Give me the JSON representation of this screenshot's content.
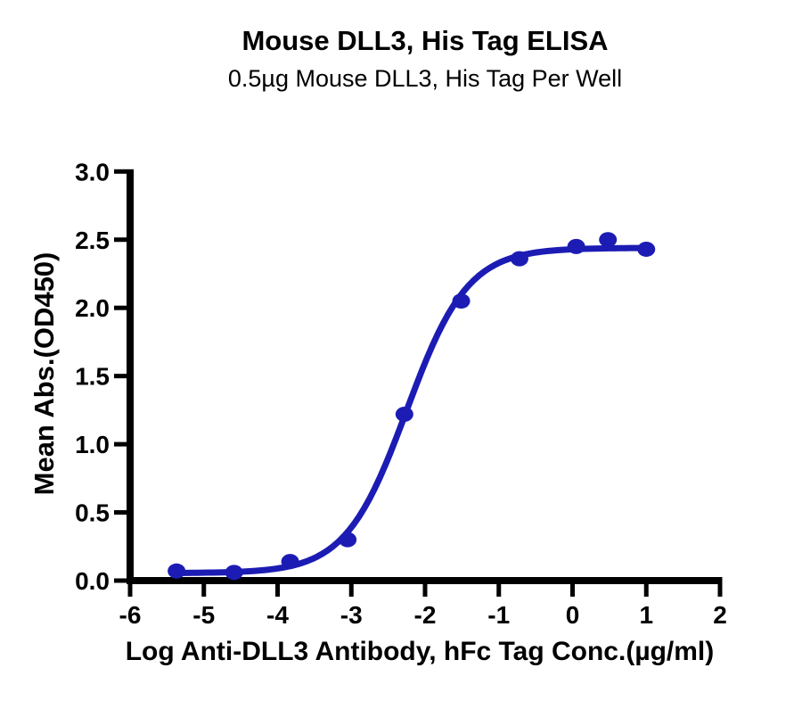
{
  "page": {
    "background": "#ffffff"
  },
  "chart_data": {
    "type": "scatter",
    "title": "Mouse DLL3, His Tag ELISA",
    "subtitle": "0.5µg Mouse DLL3, His Tag Per Well",
    "xlabel": "Log Anti-DLL3 Antibody, hFc Tag Conc.(µg/ml)",
    "ylabel": "Mean Abs.(OD450)",
    "xlim": [
      -6,
      2
    ],
    "ylim": [
      0,
      3
    ],
    "x_ticks": [
      -6,
      -5,
      -4,
      -3,
      -2,
      -1,
      0,
      1,
      2
    ],
    "x_tick_labels": [
      "-6",
      "-5",
      "-4",
      "-3",
      "-2",
      "-1",
      "0",
      "1",
      "2"
    ],
    "y_ticks": [
      0,
      0.5,
      1,
      1.5,
      2,
      2.5,
      3
    ],
    "y_tick_labels": [
      "0.0",
      "0.5",
      "1.0",
      "1.5",
      "2.0",
      "2.5",
      "3.0"
    ],
    "grid": false,
    "legend": "none",
    "axis_color": "#000000",
    "text_color": "#000000",
    "series": [
      {
        "marker_color": "#1C1CB4",
        "line_color": "#1C1CB4",
        "points": [
          {
            "x": -5.37,
            "y": 0.07
          },
          {
            "x": -4.59,
            "y": 0.06
          },
          {
            "x": -3.83,
            "y": 0.14
          },
          {
            "x": -3.05,
            "y": 0.3
          },
          {
            "x": -2.28,
            "y": 1.22
          },
          {
            "x": -1.51,
            "y": 2.05
          },
          {
            "x": -0.72,
            "y": 2.36
          },
          {
            "x": 0.05,
            "y": 2.45
          },
          {
            "x": 0.48,
            "y": 2.5
          },
          {
            "x": 1.0,
            "y": 2.43
          }
        ],
        "fit_curve": {
          "model": "4PL",
          "bottom": 0.055,
          "top": 2.44,
          "logEC50": -2.25,
          "hillslope": 1.05,
          "x_start": -5.37,
          "x_end": 1.0
        }
      }
    ]
  }
}
